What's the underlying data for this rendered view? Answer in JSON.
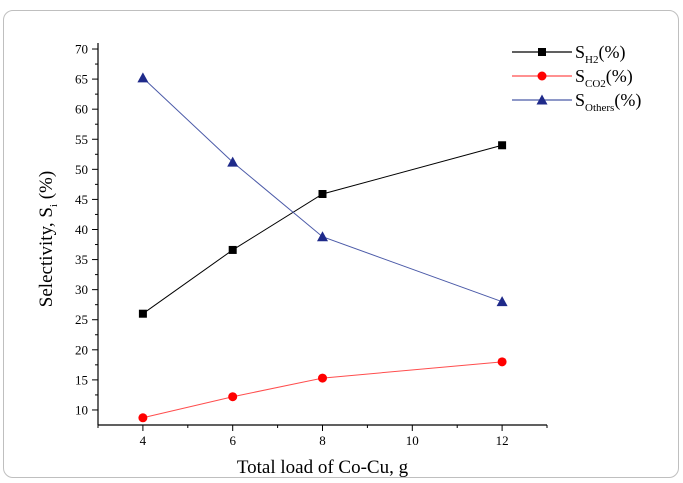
{
  "chart_data": {
    "type": "line",
    "xlabel": "Total load of Co-Cu, g",
    "ylabel_main": "Selectivity, S",
    "ylabel_sub": "i",
    "ylabel_unit": " (%)",
    "x_ticks": [
      "4",
      "6",
      "8",
      "10",
      "12"
    ],
    "y_ticks": [
      "10",
      "15",
      "20",
      "25",
      "30",
      "35",
      "40",
      "45",
      "50",
      "55",
      "60",
      "65",
      "70"
    ],
    "xlim": [
      3,
      13
    ],
    "ylim": [
      7.5,
      71
    ],
    "x": [
      4,
      6,
      8,
      12
    ],
    "series": [
      {
        "name_main": "S",
        "name_sub": "H2",
        "name_unit": "(%)",
        "color": "#000000",
        "marker": "square",
        "values": [
          26,
          36.6,
          45.9,
          54
        ]
      },
      {
        "name_main": "S",
        "name_sub": "CO2",
        "name_unit": "(%)",
        "color": "#ff0000",
        "line_color": "#ff4d4d",
        "marker": "circle",
        "values": [
          8.7,
          12.2,
          15.3,
          18
        ]
      },
      {
        "name_main": "S",
        "name_sub": "Others",
        "name_unit": "(%)",
        "color": "#1f2a8a",
        "line_color": "#4b5aa8",
        "marker": "triangle",
        "values": [
          65.2,
          51.2,
          38.8,
          28
        ]
      }
    ]
  }
}
